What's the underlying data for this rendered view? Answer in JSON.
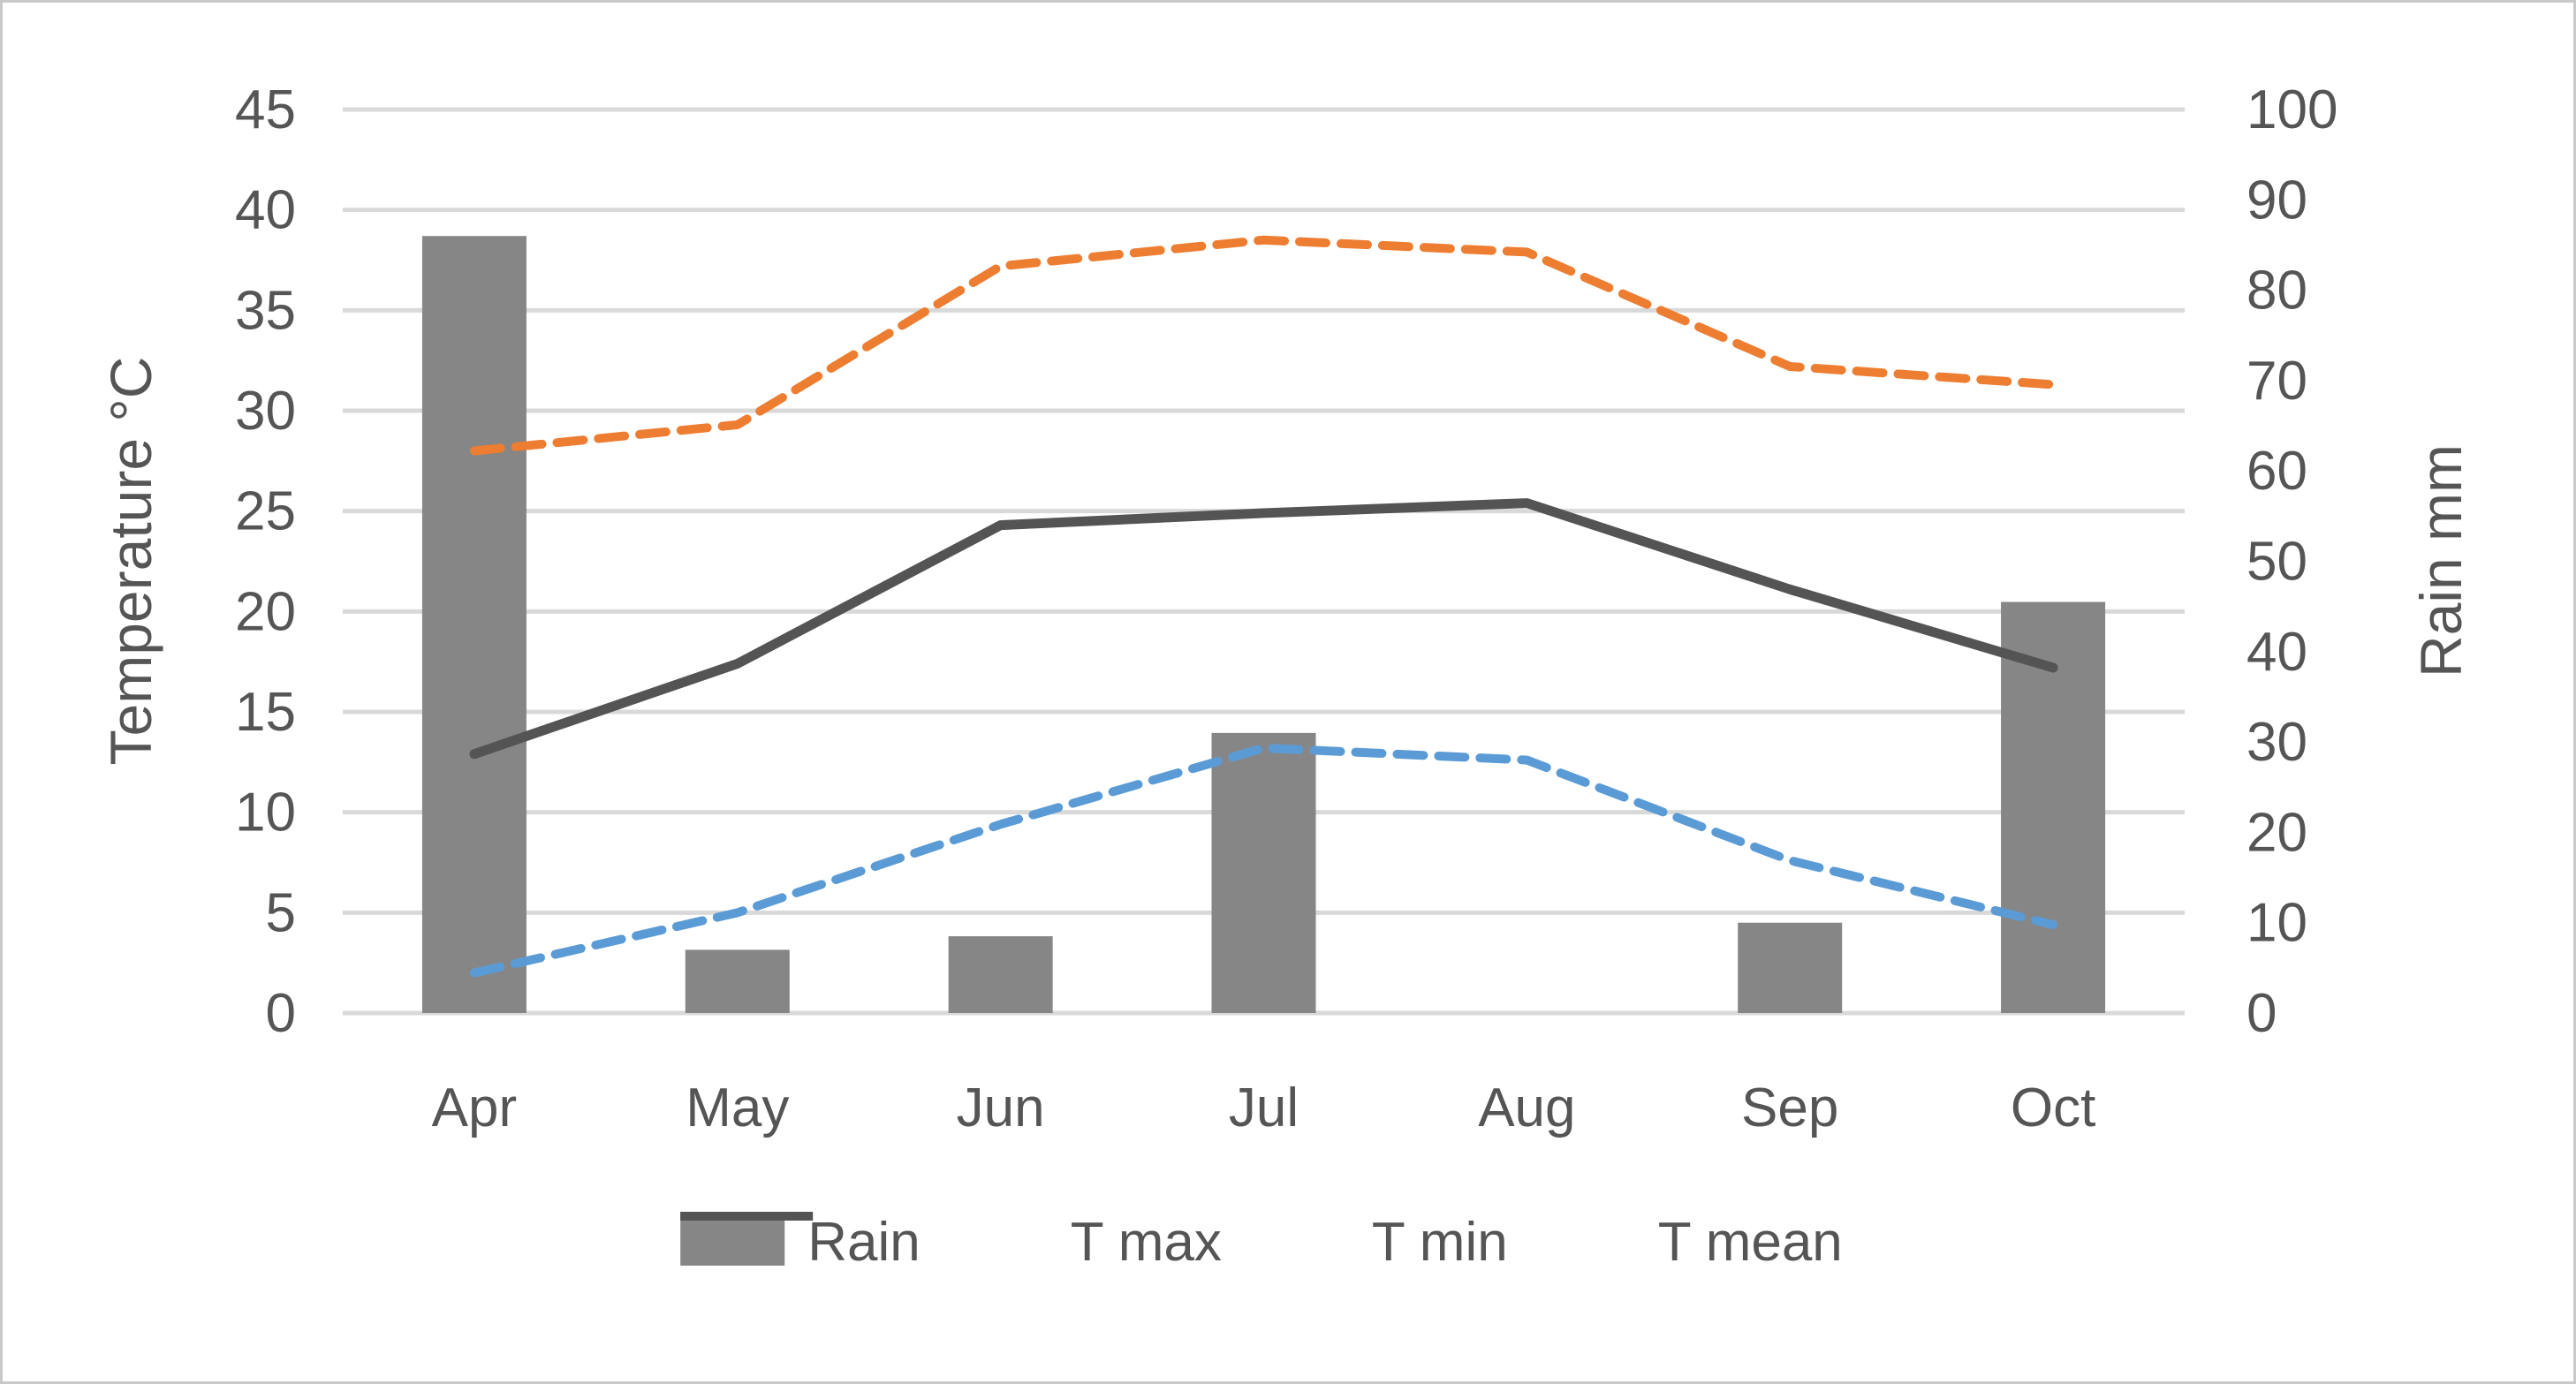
{
  "chart_data": {
    "type": "combo",
    "categories": [
      "Apr",
      "May",
      "Jun",
      "Jul",
      "Aug",
      "Sep",
      "Oct"
    ],
    "series": [
      {
        "name": "Rain",
        "type": "bar",
        "style": "solid",
        "axis": "right",
        "color": "#868686",
        "values": [
          86,
          7,
          8.5,
          31,
          0,
          10,
          45.5
        ]
      },
      {
        "name": "T max",
        "type": "line",
        "style": "dashed",
        "axis": "left",
        "color": "#ED7D31",
        "values": [
          28.0,
          29.3,
          37.2,
          38.5,
          37.9,
          32.2,
          31.3
        ]
      },
      {
        "name": "T min",
        "type": "line",
        "style": "dashed",
        "axis": "left",
        "color": "#5B9BD5",
        "values": [
          2.0,
          5.0,
          9.4,
          13.2,
          12.6,
          7.6,
          4.4
        ]
      },
      {
        "name": "T mean",
        "type": "line",
        "style": "solid",
        "axis": "left",
        "color": "#545454",
        "values": [
          12.9,
          17.4,
          24.3,
          24.9,
          25.4,
          21.1,
          17.2
        ]
      }
    ],
    "left_axis": {
      "title": "Temperature °C",
      "min": 0,
      "max": 45,
      "step": 5,
      "ticks": [
        0,
        5,
        10,
        15,
        20,
        25,
        30,
        35,
        40,
        45
      ]
    },
    "right_axis": {
      "title": "Rain mm",
      "min": 0,
      "max": 100,
      "step": 10,
      "ticks": [
        0,
        10,
        20,
        30,
        40,
        50,
        60,
        70,
        80,
        90,
        100
      ]
    },
    "grid": true,
    "legend_position": "bottom",
    "legend": [
      {
        "label": "Rain"
      },
      {
        "label": "T max"
      },
      {
        "label": "T min"
      },
      {
        "label": "T mean"
      }
    ],
    "colors": {
      "gridline": "#D9D9D9",
      "text": "#555555",
      "border": "#C9C9C9"
    }
  }
}
